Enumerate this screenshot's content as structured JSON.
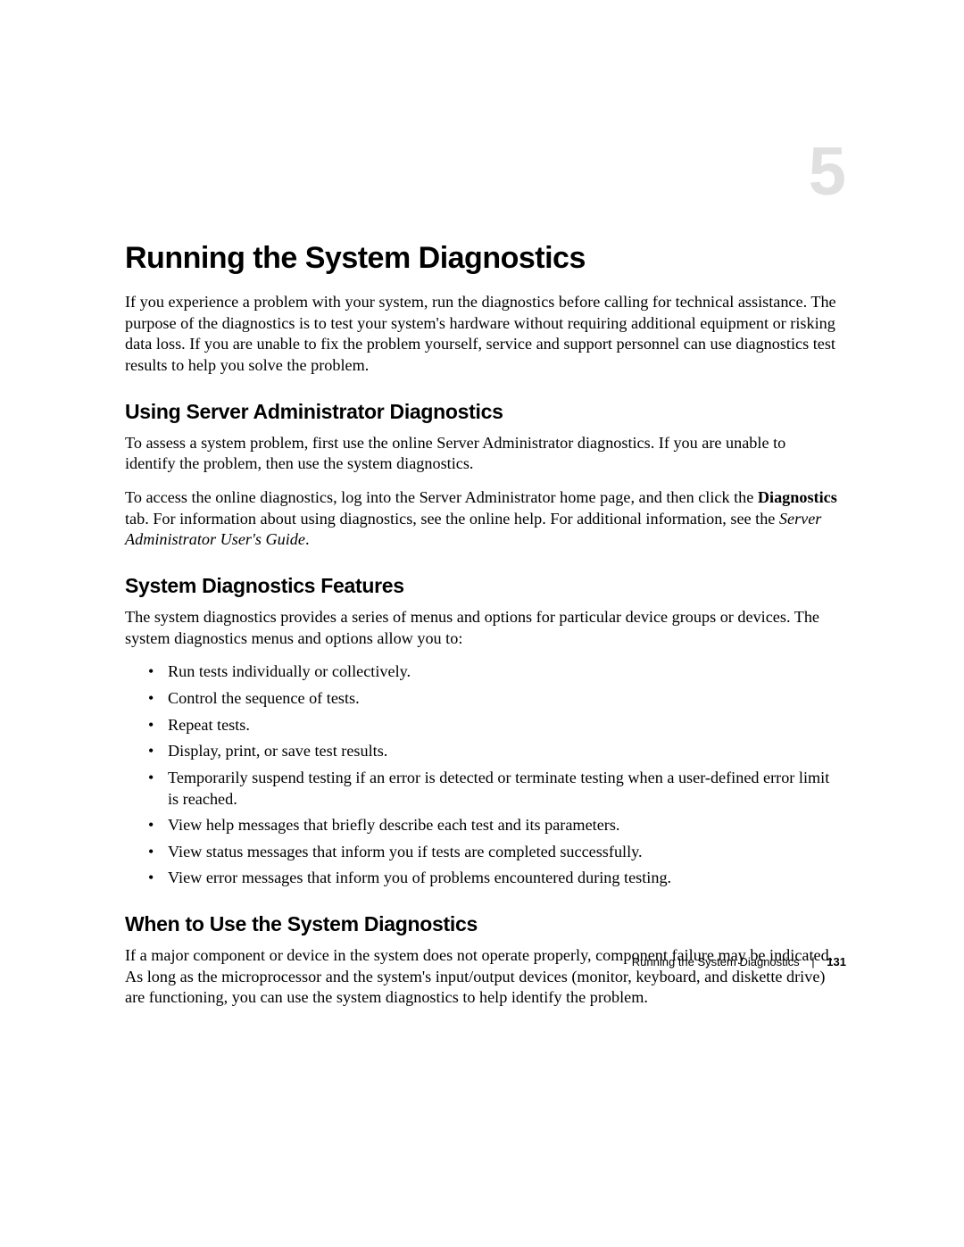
{
  "typography": {
    "body_font": "Times New Roman",
    "heading_font": "Arial",
    "body_fontsize_pt": 14,
    "h1_fontsize_pt": 26,
    "h2_fontsize_pt": 17,
    "chapter_number_fontsize_pt": 57
  },
  "colors": {
    "page_bg": "#ffffff",
    "text": "#000000",
    "chapter_number": "#e0e0e0"
  },
  "chapter_number": "5",
  "title": "Running the System Diagnostics",
  "intro": "If you experience a problem with your system, run the diagnostics before calling for technical assistance. The purpose of the diagnostics is to test your system's hardware without requiring additional equipment or risking data loss. If you are unable to fix the problem yourself, service and support personnel can use diagnostics test results to help you solve the problem.",
  "sections": {
    "using": {
      "heading": "Using Server Administrator Diagnostics",
      "p1": "To assess a system problem, first use the online Server Administrator diagnostics. If you are unable to identify the problem, then use the system diagnostics.",
      "p2_pre": "To access the online diagnostics, log into the Server Administrator home page, and then click the ",
      "p2_bold": "Diagnostics",
      "p2_mid": " tab. For information about using diagnostics, see the online help. For additional information, see the ",
      "p2_italic": "Server Administrator User's Guide",
      "p2_post": "."
    },
    "features": {
      "heading": "System Diagnostics Features",
      "p1": "The system diagnostics provides a series of menus and options for particular device groups or devices. The system diagnostics menus and options allow you to:",
      "bullets": {
        "b0": "Run tests individually or collectively.",
        "b1": "Control the sequence of tests.",
        "b2": "Repeat tests.",
        "b3": "Display, print, or save test results.",
        "b4": "Temporarily suspend testing if an error is detected or terminate testing when a user-defined error limit is reached.",
        "b5": "View help messages that briefly describe each test and its parameters.",
        "b6": "View status messages that inform you if tests are completed successfully.",
        "b7": "View error messages that inform you of problems encountered during testing."
      }
    },
    "when": {
      "heading": "When to Use the System Diagnostics",
      "p1": "If a major component or device in the system does not operate properly, component failure may be indicated. As long as the microprocessor and the system's input/output devices (monitor, keyboard, and diskette drive) are functioning, you can use the system diagnostics to help identify the problem."
    }
  },
  "footer": {
    "label": "Running the System Diagnostics",
    "page_number": "131",
    "separator": "|"
  }
}
